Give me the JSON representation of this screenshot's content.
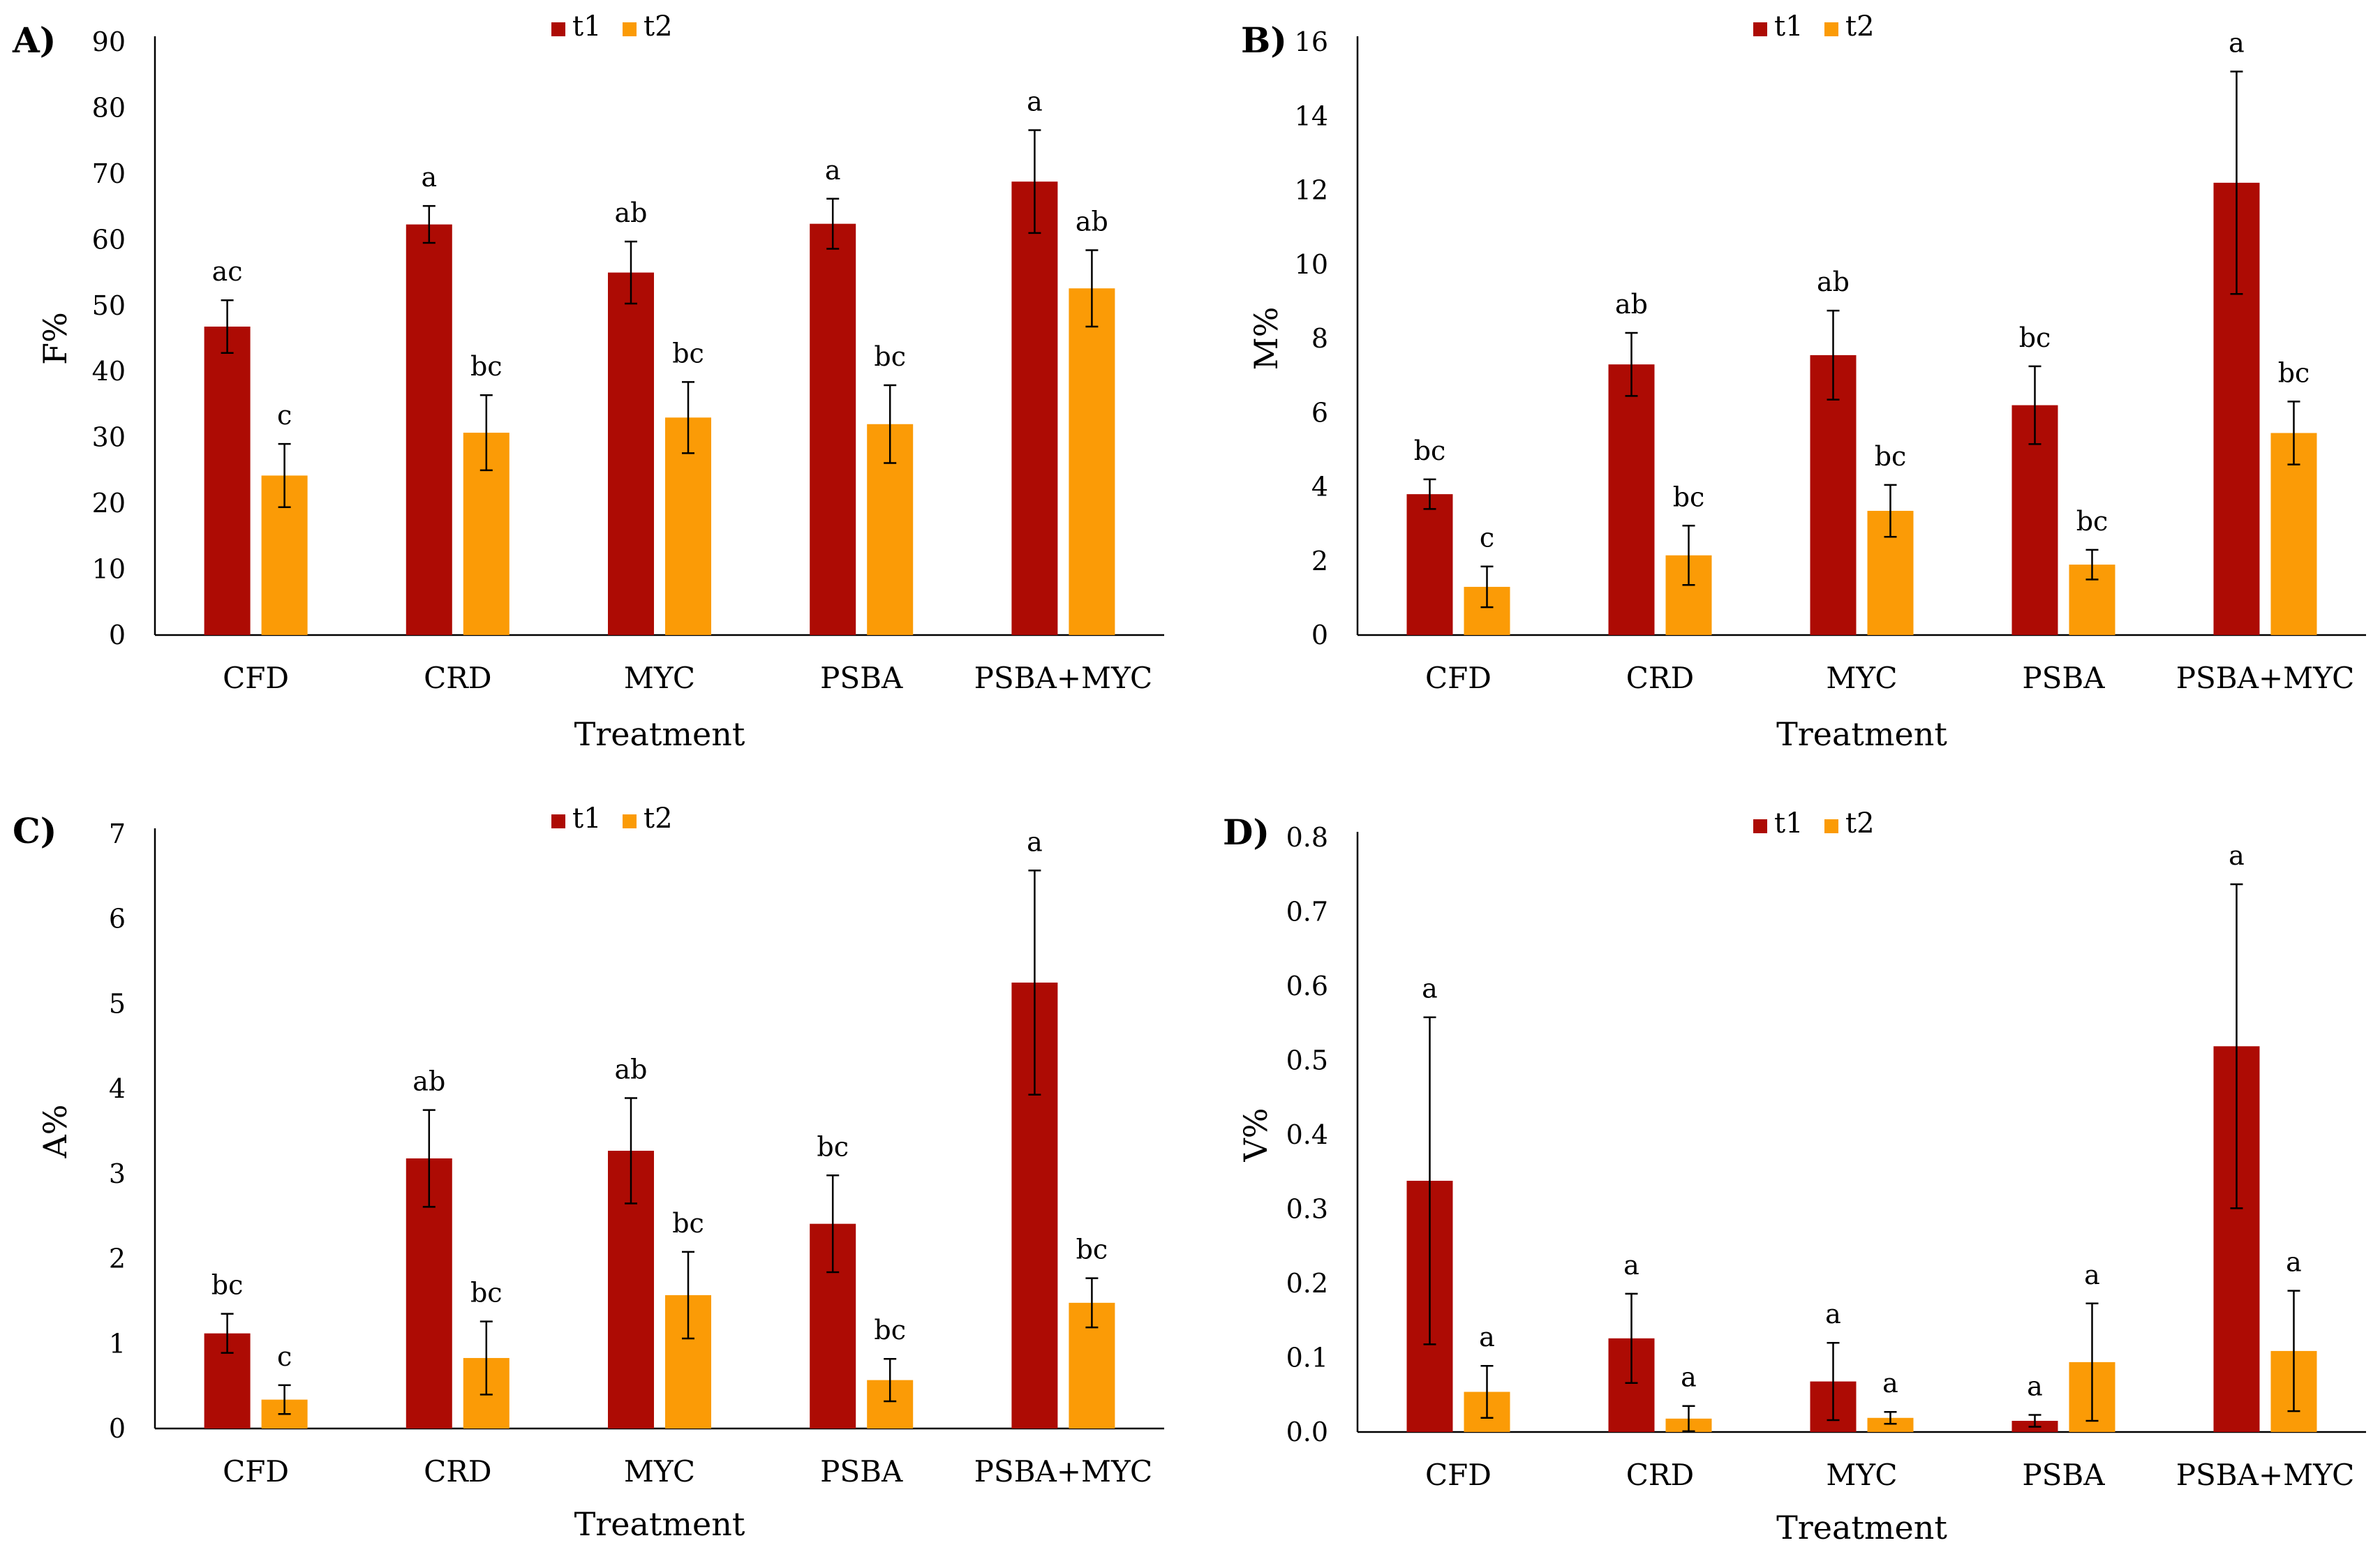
{
  "figure": {
    "series_colors": {
      "t1": "#ad0b04",
      "t2": "#fb9b06"
    }
  },
  "chart_data": [
    {
      "panel": "A)",
      "type": "bar",
      "categories": [
        "CFD",
        "CRD",
        "MYC",
        "PSBA",
        "PSBA+MYC"
      ],
      "series": [
        {
          "name": "t1",
          "values": [
            46.8,
            62.3,
            55.0,
            62.4,
            68.8
          ],
          "errors": [
            4.0,
            2.8,
            4.7,
            3.8,
            7.8
          ],
          "labels": [
            "ac",
            "a",
            "ab",
            "a",
            "a"
          ]
        },
        {
          "name": "t2",
          "values": [
            24.2,
            30.7,
            33.0,
            32.0,
            52.6
          ],
          "errors": [
            4.8,
            5.7,
            5.4,
            5.9,
            5.8
          ],
          "labels": [
            "c",
            "bc",
            "bc",
            "bc",
            "ab"
          ]
        }
      ],
      "xlabel": "Treatment",
      "ylabel": "F%",
      "ylim": [
        0,
        90
      ],
      "yticks": [
        "0",
        "10",
        "20",
        "30",
        "40",
        "50",
        "60",
        "70",
        "80",
        "90"
      ],
      "legend": [
        "t1",
        "t2"
      ]
    },
    {
      "panel": "B)",
      "type": "bar",
      "categories": [
        "CFD",
        "CRD",
        "MYC",
        "PSBA",
        "PSBA+MYC"
      ],
      "series": [
        {
          "name": "t1",
          "values": [
            3.8,
            7.3,
            7.55,
            6.2,
            12.2
          ],
          "errors": [
            0.4,
            0.85,
            1.2,
            1.05,
            3.0
          ],
          "labels": [
            "bc",
            "ab",
            "ab",
            "bc",
            "a"
          ]
        },
        {
          "name": "t2",
          "values": [
            1.3,
            2.15,
            3.35,
            1.9,
            5.45
          ],
          "errors": [
            0.55,
            0.8,
            0.7,
            0.4,
            0.85
          ],
          "labels": [
            "c",
            "bc",
            "bc",
            "bc",
            "bc"
          ]
        }
      ],
      "xlabel": "Treatment",
      "ylabel": "M%",
      "ylim": [
        0,
        16
      ],
      "yticks": [
        "0",
        "2",
        "4",
        "6",
        "8",
        "10",
        "12",
        "14",
        "16"
      ],
      "legend": [
        "t1",
        "t2"
      ]
    },
    {
      "panel": "C)",
      "type": "bar",
      "categories": [
        "CFD",
        "CRD",
        "MYC",
        "PSBA",
        "PSBA+MYC"
      ],
      "series": [
        {
          "name": "t1",
          "values": [
            1.12,
            3.18,
            3.27,
            2.41,
            5.25
          ],
          "errors": [
            0.23,
            0.57,
            0.62,
            0.57,
            1.32
          ],
          "labels": [
            "bc",
            "ab",
            "ab",
            "bc",
            "a"
          ]
        },
        {
          "name": "t2",
          "values": [
            0.34,
            0.83,
            1.57,
            0.57,
            1.48
          ],
          "errors": [
            0.17,
            0.43,
            0.51,
            0.25,
            0.29
          ],
          "labels": [
            "c",
            "bc",
            "bc",
            "bc",
            "bc"
          ]
        }
      ],
      "xlabel": "Treatment",
      "ylabel": "A%",
      "ylim": [
        0,
        7
      ],
      "yticks": [
        "0",
        "1",
        "2",
        "3",
        "4",
        "5",
        "6",
        "7"
      ],
      "legend": [
        "t1",
        "t2"
      ]
    },
    {
      "panel": "D)",
      "type": "bar",
      "categories": [
        "CFD",
        "CRD",
        "MYC",
        "PSBA",
        "PSBA+MYC"
      ],
      "series": [
        {
          "name": "t1",
          "values": [
            0.338,
            0.126,
            0.068,
            0.015,
            0.519
          ],
          "errors": [
            0.22,
            0.06,
            0.052,
            0.008,
            0.218
          ],
          "labels": [
            "a",
            "a",
            "a",
            "a",
            "a"
          ]
        },
        {
          "name": "t2",
          "values": [
            0.054,
            0.018,
            0.019,
            0.094,
            0.109
          ],
          "errors": [
            0.035,
            0.017,
            0.008,
            0.079,
            0.081
          ],
          "labels": [
            "a",
            "a",
            "a",
            "a",
            "a"
          ]
        }
      ],
      "xlabel": "Treatment",
      "ylabel": "V%",
      "ylim": [
        0,
        0.8
      ],
      "yticks": [
        "0.0",
        "0.1",
        "0.2",
        "0.3",
        "0.4",
        "0.5",
        "0.6",
        "0.7",
        "0.8"
      ],
      "legend": [
        "t1",
        "t2"
      ]
    }
  ]
}
